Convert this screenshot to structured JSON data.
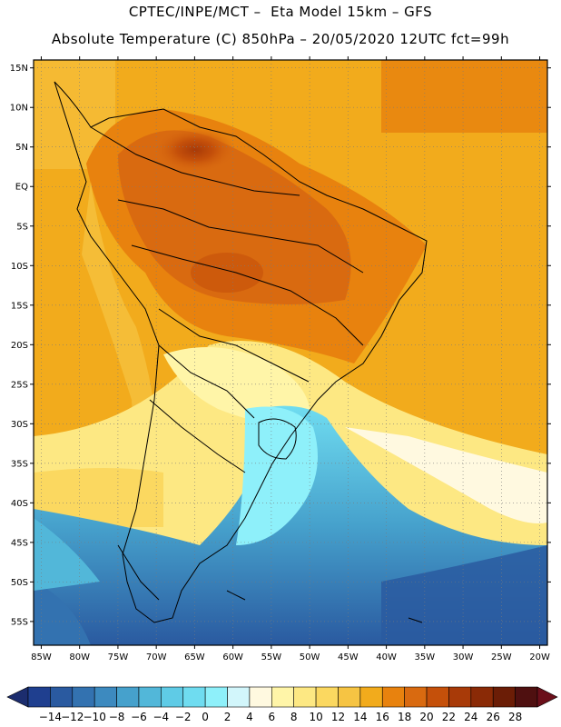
{
  "header": {
    "line1": "CPTEC/INPE/MCT –  Eta Model 15km – GFS",
    "line2": "Absolute Temperature (C) 850hPa – 20/05/2020 12UTC fct=99h"
  },
  "map": {
    "lon_range": [
      -86,
      -19
    ],
    "lat_range": [
      -58,
      16
    ],
    "lat_ticks": [
      {
        "value": 15,
        "label": "15N"
      },
      {
        "value": 10,
        "label": "10N"
      },
      {
        "value": 5,
        "label": "5N"
      },
      {
        "value": 0,
        "label": "EQ"
      },
      {
        "value": -5,
        "label": "5S"
      },
      {
        "value": -10,
        "label": "10S"
      },
      {
        "value": -15,
        "label": "15S"
      },
      {
        "value": -20,
        "label": "20S"
      },
      {
        "value": -25,
        "label": "25S"
      },
      {
        "value": -30,
        "label": "30S"
      },
      {
        "value": -35,
        "label": "35S"
      },
      {
        "value": -40,
        "label": "40S"
      },
      {
        "value": -45,
        "label": "45S"
      },
      {
        "value": -50,
        "label": "50S"
      },
      {
        "value": -55,
        "label": "55S"
      }
    ],
    "lon_ticks": [
      {
        "value": -85,
        "label": "85W"
      },
      {
        "value": -80,
        "label": "80W"
      },
      {
        "value": -75,
        "label": "75W"
      },
      {
        "value": -70,
        "label": "70W"
      },
      {
        "value": -65,
        "label": "65W"
      },
      {
        "value": -60,
        "label": "60W"
      },
      {
        "value": -55,
        "label": "55W"
      },
      {
        "value": -50,
        "label": "50W"
      },
      {
        "value": -45,
        "label": "45W"
      },
      {
        "value": -40,
        "label": "40W"
      },
      {
        "value": -35,
        "label": "35W"
      },
      {
        "value": -30,
        "label": "30W"
      },
      {
        "value": -25,
        "label": "25W"
      },
      {
        "value": -20,
        "label": "20W"
      }
    ],
    "gridlines": "dotted"
  },
  "colorbar": {
    "labels": [
      "-14",
      "-12",
      "-10",
      "-8",
      "-6",
      "-4",
      "-2",
      "0",
      "2",
      "4",
      "6",
      "8",
      "10",
      "12",
      "14",
      "16",
      "18",
      "20",
      "22",
      "24",
      "26",
      "28"
    ],
    "colors": [
      "#1f3f8f",
      "#2a5aa0",
      "#3372b0",
      "#3d8abf",
      "#46a1cc",
      "#52b7d9",
      "#5fcbe6",
      "#6fdcf0",
      "#8ef0fa",
      "#d2f6fb",
      "#fff9e0",
      "#fff5a8",
      "#fde883",
      "#fbd860",
      "#f6c443",
      "#f2ab1c",
      "#e8820e",
      "#d96a10",
      "#c5500a",
      "#a83a08",
      "#8a2a06",
      "#6b1d06",
      "#4f1010"
    ],
    "left_arrow_color": "#1c2d6e",
    "right_arrow_color": "#6b0f1a"
  }
}
